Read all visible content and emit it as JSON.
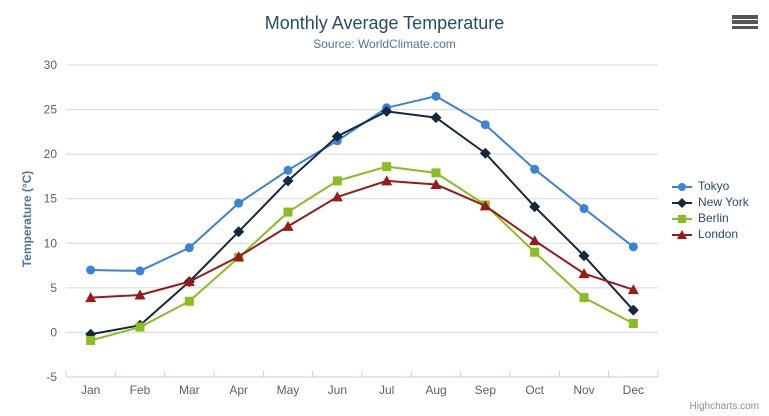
{
  "chart": {
    "title": "Monthly Average Temperature",
    "subtitle": "Source: WorldClimate.com",
    "credits": "Highcharts.com",
    "context_menu_icon": "hamburger-icon"
  },
  "chart_data": {
    "type": "line",
    "title": "Monthly Average Temperature",
    "subtitle": "Source: WorldClimate.com",
    "xlabel": "",
    "ylabel": "Temperature (°C)",
    "categories": [
      "Jan",
      "Feb",
      "Mar",
      "Apr",
      "May",
      "Jun",
      "Jul",
      "Aug",
      "Sep",
      "Oct",
      "Nov",
      "Dec"
    ],
    "series": [
      {
        "name": "Tokyo",
        "marker": "circle",
        "color": "#3b82d8",
        "values": [
          7.0,
          6.9,
          9.5,
          14.5,
          18.2,
          21.5,
          25.2,
          26.5,
          23.3,
          18.3,
          13.9,
          9.6
        ]
      },
      {
        "name": "New York",
        "marker": "diamond",
        "color": "#15293e",
        "values": [
          -0.2,
          0.8,
          5.7,
          11.3,
          17.0,
          22.0,
          24.8,
          24.1,
          20.1,
          14.1,
          8.6,
          2.5
        ]
      },
      {
        "name": "Berlin",
        "marker": "square",
        "color": "#8bbc21",
        "values": [
          -0.9,
          0.6,
          3.5,
          8.4,
          13.5,
          17.0,
          18.6,
          17.9,
          14.3,
          9.0,
          3.9,
          1.0
        ]
      },
      {
        "name": "London",
        "marker": "triangle",
        "color": "#991a1a",
        "values": [
          3.9,
          4.2,
          5.7,
          8.5,
          11.9,
          15.2,
          17.0,
          16.6,
          14.2,
          10.3,
          6.6,
          4.8
        ]
      }
    ],
    "ylim": [
      -5,
      30
    ],
    "yticks": [
      -5,
      0,
      5,
      10,
      15,
      20,
      25,
      30
    ],
    "grid": true,
    "legend_position": "right",
    "colors": {
      "grid_line": "#d8d8d8",
      "axis_line": "#c0d0e0",
      "tick_label": "#606060",
      "title": "#274b6d",
      "subtitle": "#4d759e",
      "axis_title": "#4d759e",
      "legend_text": "#274b6d",
      "credits_text": "#909090"
    }
  }
}
